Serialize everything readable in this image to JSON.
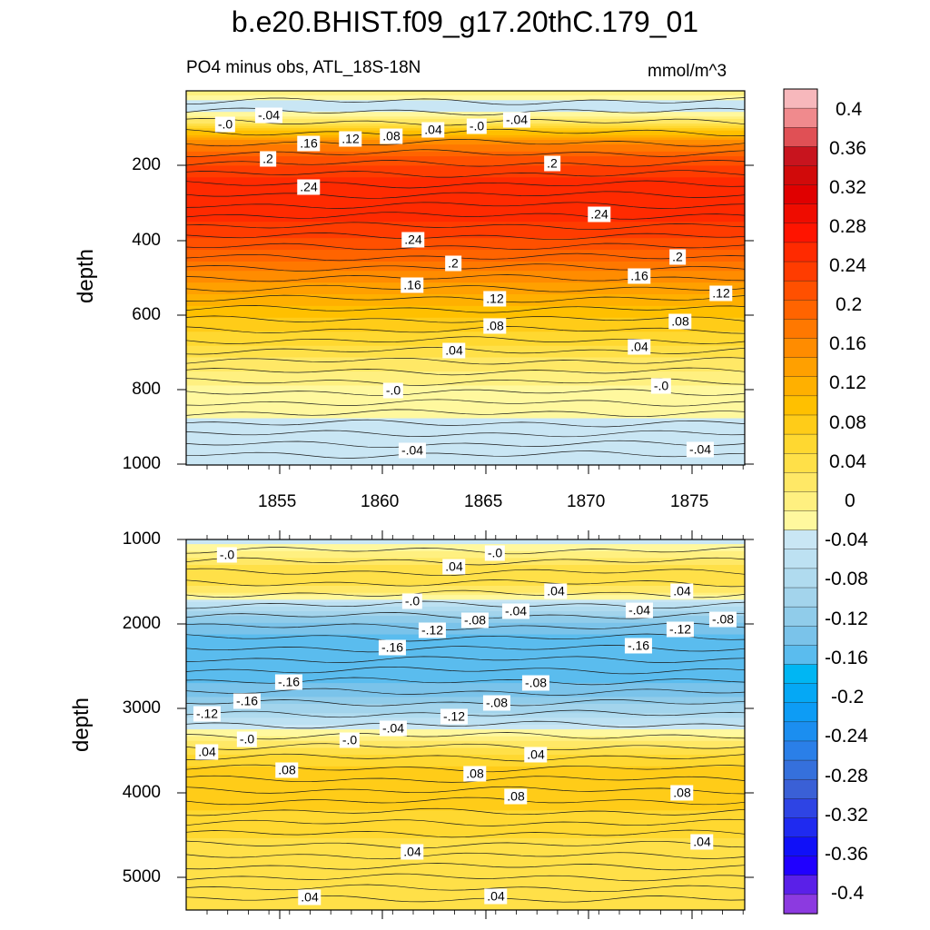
{
  "title": "b.e20.BHIST.f09_g17.20thC.179_01",
  "subtitle_left": "PO4 minus obs, ATL_18S-18N",
  "subtitle_right": "mmol/m^3",
  "chart_data": [
    {
      "type": "contour",
      "panel": "upper",
      "ylabel": "depth",
      "y_ticks": [
        "200",
        "400",
        "600",
        "800",
        "1000"
      ],
      "ylim": [
        0,
        1000
      ],
      "x_ticks": [
        "1855",
        "1860",
        "1865",
        "1870",
        "1875"
      ],
      "xlim": [
        1850.6,
        1877.6
      ],
      "contour_labels": [
        "-.0",
        "-.04",
        ".16",
        ".12",
        ".08",
        ".04",
        "-.0",
        "-.04",
        ".2",
        ".2",
        ".24",
        ".24",
        ".24",
        ".2",
        ".2",
        ".16",
        ".16",
        ".12",
        ".12",
        ".08",
        ".08",
        ".04",
        ".04",
        "-.0",
        "-.0",
        "-.04",
        "-.04"
      ],
      "depth_profile": [
        {
          "depth": 20,
          "value": 0.02
        },
        {
          "depth": 60,
          "value": -0.05
        },
        {
          "depth": 90,
          "value": -0.02
        },
        {
          "depth": 110,
          "value": 0.04
        },
        {
          "depth": 135,
          "value": 0.1
        },
        {
          "depth": 160,
          "value": 0.16
        },
        {
          "depth": 200,
          "value": 0.21
        },
        {
          "depth": 260,
          "value": 0.25
        },
        {
          "depth": 330,
          "value": 0.26
        },
        {
          "depth": 400,
          "value": 0.23
        },
        {
          "depth": 460,
          "value": 0.19
        },
        {
          "depth": 520,
          "value": 0.15
        },
        {
          "depth": 580,
          "value": 0.11
        },
        {
          "depth": 650,
          "value": 0.07
        },
        {
          "depth": 720,
          "value": 0.03
        },
        {
          "depth": 790,
          "value": -0.01
        },
        {
          "depth": 880,
          "value": -0.03
        },
        {
          "depth": 1000,
          "value": -0.045
        }
      ]
    },
    {
      "type": "contour",
      "panel": "lower",
      "ylabel": "depth",
      "y_ticks": [
        "1000",
        "2000",
        "3000",
        "4000",
        "5000"
      ],
      "ylim": [
        1000,
        5400
      ],
      "xlim": [
        1850.6,
        1877.6
      ],
      "contour_labels": [
        "-.0",
        "-.0",
        ".04",
        ".04",
        ".04",
        "-.0",
        "-.04",
        "-.08",
        "-.12",
        "-.16",
        "-.04",
        "-.12",
        "-.08",
        "-.16",
        "-.16",
        "-.16",
        "-.12",
        "-.08",
        "-.12",
        "-.08",
        "-.04",
        "-.0",
        "-.0",
        ".04",
        ".04",
        ".08",
        ".08",
        ".08",
        ".08",
        ".04",
        ".04",
        ".04",
        ".04"
      ],
      "depth_profile": [
        {
          "depth": 1000,
          "value": -0.04
        },
        {
          "depth": 1150,
          "value": -0.01
        },
        {
          "depth": 1300,
          "value": 0.03
        },
        {
          "depth": 1500,
          "value": 0.05
        },
        {
          "depth": 1650,
          "value": 0.0
        },
        {
          "depth": 1800,
          "value": -0.07
        },
        {
          "depth": 1950,
          "value": -0.12
        },
        {
          "depth": 2150,
          "value": -0.15
        },
        {
          "depth": 2500,
          "value": -0.16
        },
        {
          "depth": 2800,
          "value": -0.14
        },
        {
          "depth": 3050,
          "value": -0.09
        },
        {
          "depth": 3300,
          "value": -0.02
        },
        {
          "depth": 3500,
          "value": 0.04
        },
        {
          "depth": 3800,
          "value": 0.085
        },
        {
          "depth": 4100,
          "value": 0.075
        },
        {
          "depth": 4500,
          "value": 0.05
        },
        {
          "depth": 5000,
          "value": 0.035
        },
        {
          "depth": 5400,
          "value": 0.03
        }
      ]
    }
  ],
  "colorbar": {
    "tick_labels": [
      "0.4",
      "0.36",
      "0.32",
      "0.28",
      "0.24",
      "0.2",
      "0.16",
      "0.12",
      "0.08",
      "0.04",
      "0",
      "-0.04",
      "-0.08",
      "-0.12",
      "-0.16",
      "-0.2",
      "-0.24",
      "-0.28",
      "-0.32",
      "-0.36",
      "-0.4"
    ],
    "levels_min": -0.42,
    "levels_max": 0.42,
    "level_step": 0.02,
    "colors_top_to_bottom": [
      "#f7b8bc",
      "#f08a8d",
      "#e05055",
      "#c8141e",
      "#d10a0a",
      "#e00000",
      "#ef0c00",
      "#ff1400",
      "#ff2a00",
      "#ff3c00",
      "#ff5000",
      "#ff6400",
      "#ff7800",
      "#ff8c00",
      "#ffa000",
      "#ffb000",
      "#ffc000",
      "#ffcc18",
      "#ffd830",
      "#ffe048",
      "#ffe866",
      "#fff080",
      "#fff89e",
      "#c9e6f4",
      "#bde1f2",
      "#b0dbef",
      "#a3d4ec",
      "#90ccea",
      "#7ac3ea",
      "#5abcee",
      "#00b6f3",
      "#05a8f5",
      "#0d9cf5",
      "#1b8ef0",
      "#2a7fe8",
      "#3570dc",
      "#3a60d6",
      "#2e44e4",
      "#1f2af0",
      "#1010f8",
      "#2000ff",
      "#5a20e8",
      "#8c3ae0"
    ]
  }
}
